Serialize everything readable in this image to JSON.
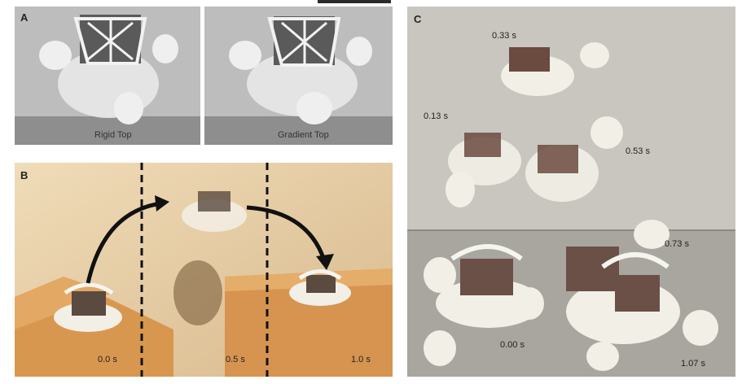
{
  "panels": {
    "a": {
      "letter": "A",
      "left_caption": "Rigid Top",
      "right_caption": "Gradient Top"
    },
    "b": {
      "letter": "B",
      "times": [
        "0.0 s",
        "0.5 s",
        "1.0 s"
      ]
    },
    "c": {
      "letter": "C",
      "times": [
        "0.33 s",
        "0.13 s",
        "0.53 s",
        "0.73 s",
        "0.00 s",
        "1.07 s"
      ]
    }
  },
  "colors": {
    "panel_a_bg": "#b9b9b9",
    "panel_b_wall": "#e8d2ae",
    "panel_b_box": "#d69a55",
    "panel_c_bg": "#c9c6c0",
    "robot_white": "#f2efe6"
  }
}
